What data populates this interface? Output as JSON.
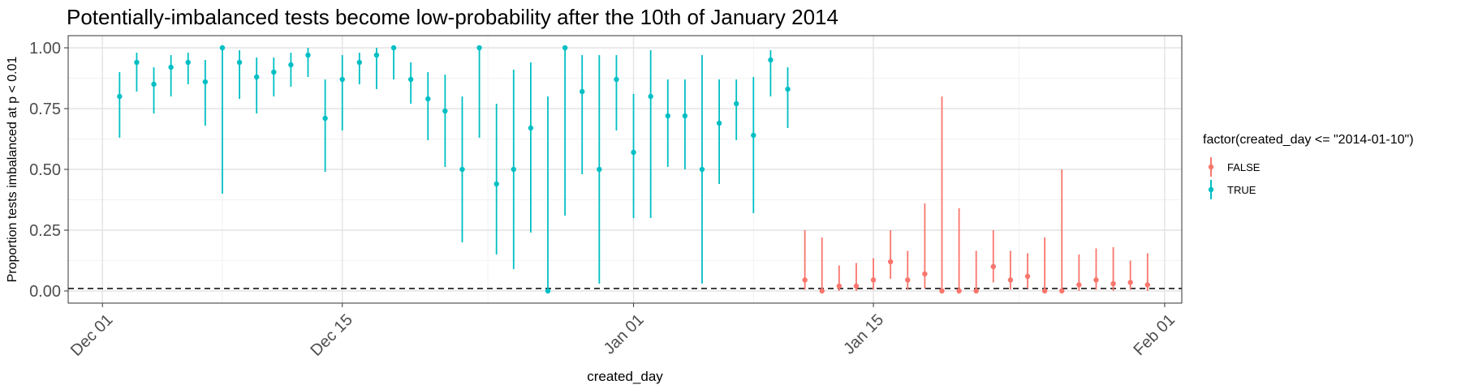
{
  "chart_data": {
    "type": "scatter",
    "title": "Potentially-imbalanced tests become low-probability after the 10th of January 2014",
    "xlabel": "created_day",
    "ylabel": "Proportion tests imbalanced at p < 0.01",
    "xlim": [
      "2013-11-29",
      "2014-02-02"
    ],
    "ylim": [
      -0.05,
      1.05
    ],
    "x_ticks": [
      {
        "date": "2013-12-01",
        "label": "Dec 01"
      },
      {
        "date": "2013-12-15",
        "label": "Dec 15"
      },
      {
        "date": "2014-01-01",
        "label": "Jan 01"
      },
      {
        "date": "2014-01-15",
        "label": "Jan 15"
      },
      {
        "date": "2014-02-01",
        "label": "Feb 01"
      }
    ],
    "y_ticks": [
      0.0,
      0.25,
      0.5,
      0.75,
      1.0
    ],
    "y_tick_labels": [
      "0.00",
      "0.25",
      "0.50",
      "0.75",
      "1.00"
    ],
    "reference_line": {
      "y": 0.01,
      "style": "dashed"
    },
    "grid": true,
    "legend": {
      "position": "right",
      "title": "factor(created_day <= \"2014-01-10\")",
      "entries": [
        {
          "label": "FALSE",
          "color": "#F8766D"
        },
        {
          "label": "TRUE",
          "color": "#00BFC4"
        }
      ]
    },
    "series": [
      {
        "name": "TRUE",
        "color": "#00BFC4",
        "points": [
          {
            "x": "2013-12-02",
            "y": 0.8,
            "ymin": 0.63,
            "ymax": 0.9
          },
          {
            "x": "2013-12-03",
            "y": 0.94,
            "ymin": 0.82,
            "ymax": 0.98
          },
          {
            "x": "2013-12-04",
            "y": 0.85,
            "ymin": 0.73,
            "ymax": 0.92
          },
          {
            "x": "2013-12-05",
            "y": 0.92,
            "ymin": 0.8,
            "ymax": 0.97
          },
          {
            "x": "2013-12-06",
            "y": 0.94,
            "ymin": 0.85,
            "ymax": 0.98
          },
          {
            "x": "2013-12-07",
            "y": 0.86,
            "ymin": 0.68,
            "ymax": 0.95
          },
          {
            "x": "2013-12-08",
            "y": 1.0,
            "ymin": 0.4,
            "ymax": 1.0
          },
          {
            "x": "2013-12-09",
            "y": 0.94,
            "ymin": 0.79,
            "ymax": 0.99
          },
          {
            "x": "2013-12-10",
            "y": 0.88,
            "ymin": 0.73,
            "ymax": 0.96
          },
          {
            "x": "2013-12-11",
            "y": 0.9,
            "ymin": 0.8,
            "ymax": 0.96
          },
          {
            "x": "2013-12-12",
            "y": 0.93,
            "ymin": 0.84,
            "ymax": 0.98
          },
          {
            "x": "2013-12-13",
            "y": 0.97,
            "ymin": 0.88,
            "ymax": 1.0
          },
          {
            "x": "2013-12-14",
            "y": 0.71,
            "ymin": 0.49,
            "ymax": 0.87
          },
          {
            "x": "2013-12-15",
            "y": 0.87,
            "ymin": 0.66,
            "ymax": 0.97
          },
          {
            "x": "2013-12-16",
            "y": 0.94,
            "ymin": 0.85,
            "ymax": 0.98
          },
          {
            "x": "2013-12-17",
            "y": 0.97,
            "ymin": 0.83,
            "ymax": 1.0
          },
          {
            "x": "2013-12-18",
            "y": 1.0,
            "ymin": 0.87,
            "ymax": 1.0
          },
          {
            "x": "2013-12-19",
            "y": 0.87,
            "ymin": 0.77,
            "ymax": 0.94
          },
          {
            "x": "2013-12-20",
            "y": 0.79,
            "ymin": 0.62,
            "ymax": 0.9
          },
          {
            "x": "2013-12-21",
            "y": 0.74,
            "ymin": 0.51,
            "ymax": 0.89
          },
          {
            "x": "2013-12-22",
            "y": 0.5,
            "ymin": 0.2,
            "ymax": 0.8
          },
          {
            "x": "2013-12-23",
            "y": 1.0,
            "ymin": 0.63,
            "ymax": 1.0
          },
          {
            "x": "2013-12-24",
            "y": 0.44,
            "ymin": 0.15,
            "ymax": 0.77
          },
          {
            "x": "2013-12-25",
            "y": 0.5,
            "ymin": 0.09,
            "ymax": 0.91
          },
          {
            "x": "2013-12-26",
            "y": 0.67,
            "ymin": 0.24,
            "ymax": 0.94
          },
          {
            "x": "2013-12-27",
            "y": 0.0,
            "ymin": 0.0,
            "ymax": 0.8
          },
          {
            "x": "2013-12-28",
            "y": 1.0,
            "ymin": 0.31,
            "ymax": 1.0
          },
          {
            "x": "2013-12-29",
            "y": 0.82,
            "ymin": 0.48,
            "ymax": 0.97
          },
          {
            "x": "2013-12-30",
            "y": 0.5,
            "ymin": 0.03,
            "ymax": 0.97
          },
          {
            "x": "2013-12-31",
            "y": 0.87,
            "ymin": 0.66,
            "ymax": 0.97
          },
          {
            "x": "2014-01-01",
            "y": 0.57,
            "ymin": 0.3,
            "ymax": 0.81
          },
          {
            "x": "2014-01-02",
            "y": 0.8,
            "ymin": 0.3,
            "ymax": 0.99
          },
          {
            "x": "2014-01-03",
            "y": 0.72,
            "ymin": 0.51,
            "ymax": 0.87
          },
          {
            "x": "2014-01-04",
            "y": 0.72,
            "ymin": 0.5,
            "ymax": 0.87
          },
          {
            "x": "2014-01-05",
            "y": 0.5,
            "ymin": 0.03,
            "ymax": 0.97
          },
          {
            "x": "2014-01-06",
            "y": 0.69,
            "ymin": 0.44,
            "ymax": 0.87
          },
          {
            "x": "2014-01-07",
            "y": 0.77,
            "ymin": 0.62,
            "ymax": 0.87
          },
          {
            "x": "2014-01-08",
            "y": 0.64,
            "ymin": 0.32,
            "ymax": 0.88
          },
          {
            "x": "2014-01-09",
            "y": 0.95,
            "ymin": 0.8,
            "ymax": 0.99
          },
          {
            "x": "2014-01-10",
            "y": 0.83,
            "ymin": 0.67,
            "ymax": 0.92
          }
        ]
      },
      {
        "name": "FALSE",
        "color": "#F8766D",
        "points": [
          {
            "x": "2014-01-11",
            "y": 0.045,
            "ymin": 0.005,
            "ymax": 0.25
          },
          {
            "x": "2014-01-12",
            "y": 0.0,
            "ymin": 0.0,
            "ymax": 0.22
          },
          {
            "x": "2014-01-13",
            "y": 0.02,
            "ymin": 0.0,
            "ymax": 0.105
          },
          {
            "x": "2014-01-14",
            "y": 0.02,
            "ymin": 0.0,
            "ymax": 0.115
          },
          {
            "x": "2014-01-15",
            "y": 0.045,
            "ymin": 0.005,
            "ymax": 0.135
          },
          {
            "x": "2014-01-16",
            "y": 0.12,
            "ymin": 0.05,
            "ymax": 0.25
          },
          {
            "x": "2014-01-17",
            "y": 0.045,
            "ymin": 0.005,
            "ymax": 0.165
          },
          {
            "x": "2014-01-18",
            "y": 0.07,
            "ymin": 0.01,
            "ymax": 0.36
          },
          {
            "x": "2014-01-19",
            "y": 0.0,
            "ymin": 0.0,
            "ymax": 0.8
          },
          {
            "x": "2014-01-20",
            "y": 0.0,
            "ymin": 0.0,
            "ymax": 0.34
          },
          {
            "x": "2014-01-21",
            "y": 0.0,
            "ymin": 0.0,
            "ymax": 0.165
          },
          {
            "x": "2014-01-22",
            "y": 0.1,
            "ymin": 0.035,
            "ymax": 0.25
          },
          {
            "x": "2014-01-23",
            "y": 0.045,
            "ymin": 0.005,
            "ymax": 0.165
          },
          {
            "x": "2014-01-24",
            "y": 0.06,
            "ymin": 0.01,
            "ymax": 0.155
          },
          {
            "x": "2014-01-25",
            "y": 0.0,
            "ymin": 0.0,
            "ymax": 0.22
          },
          {
            "x": "2014-01-26",
            "y": 0.0,
            "ymin": 0.0,
            "ymax": 0.5
          },
          {
            "x": "2014-01-27",
            "y": 0.025,
            "ymin": 0.0,
            "ymax": 0.15
          },
          {
            "x": "2014-01-28",
            "y": 0.045,
            "ymin": 0.005,
            "ymax": 0.175
          },
          {
            "x": "2014-01-29",
            "y": 0.03,
            "ymin": 0.0,
            "ymax": 0.18
          },
          {
            "x": "2014-01-30",
            "y": 0.035,
            "ymin": 0.005,
            "ymax": 0.125
          },
          {
            "x": "2014-01-31",
            "y": 0.025,
            "ymin": 0.0,
            "ymax": 0.155
          }
        ]
      }
    ]
  }
}
